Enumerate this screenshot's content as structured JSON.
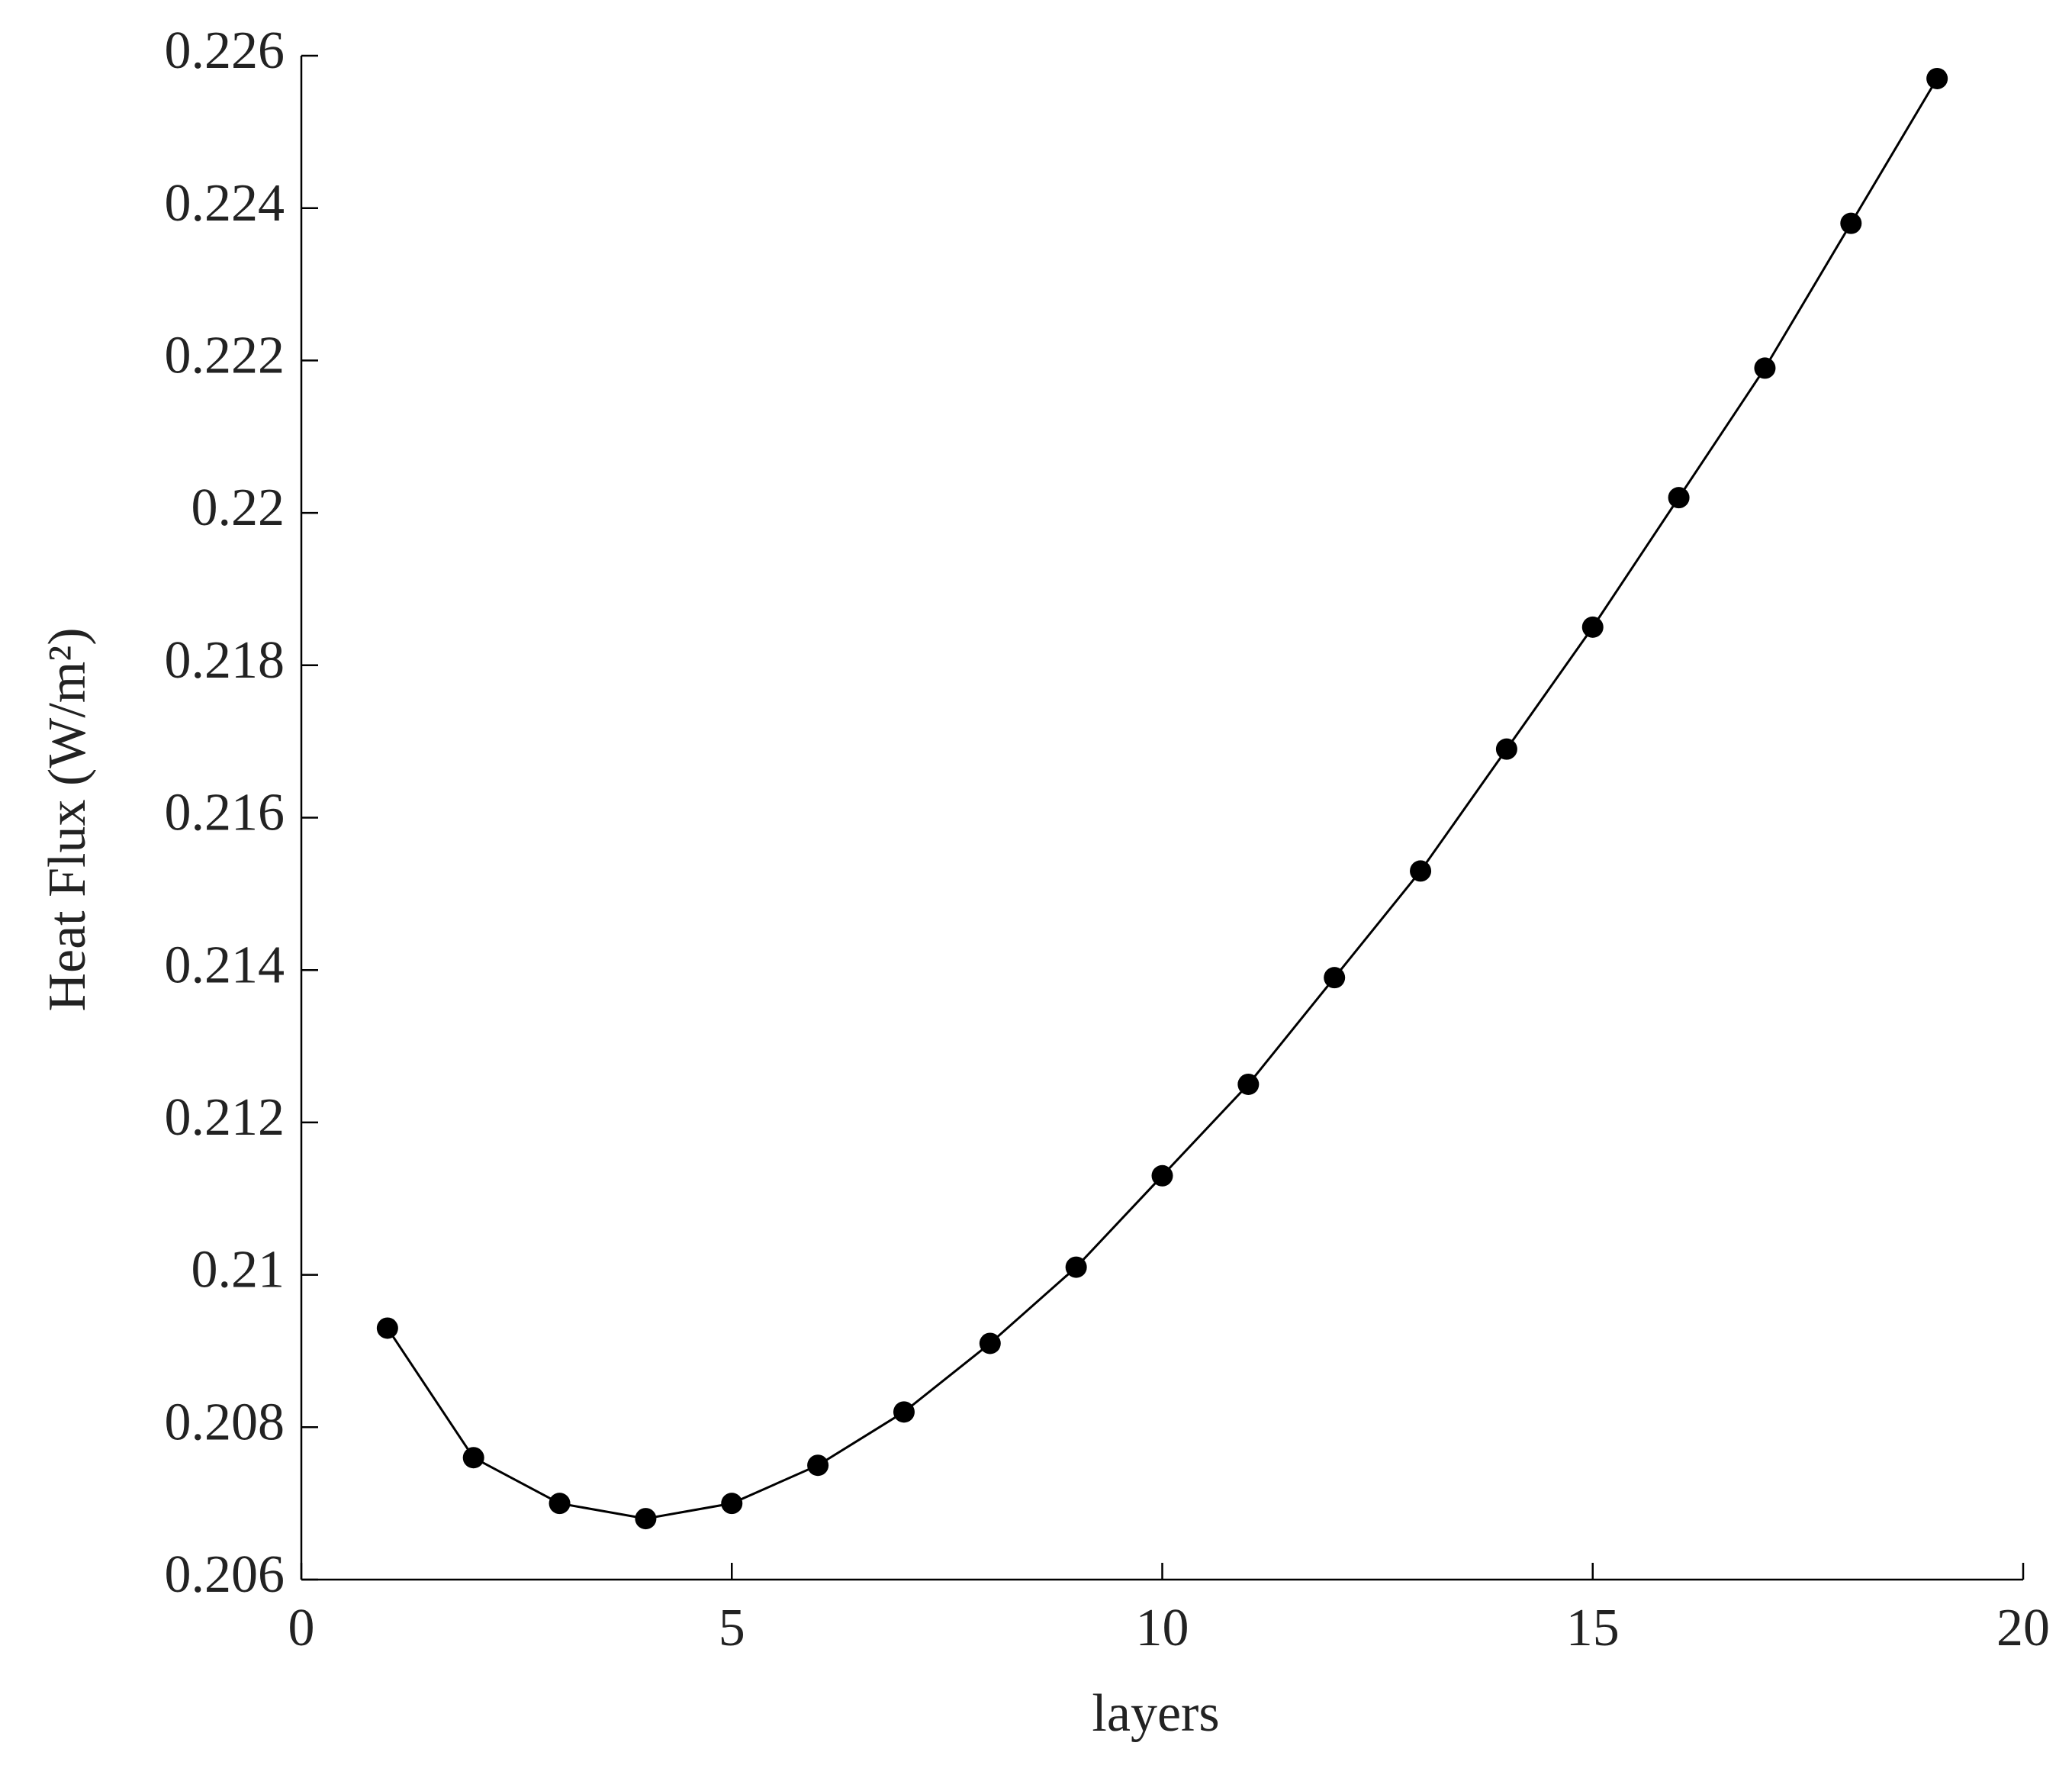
{
  "chart_data": {
    "type": "line",
    "x_label": "layers",
    "y_label": "Heat Flux (W/m²)",
    "x": [
      1,
      2,
      3,
      4,
      5,
      6,
      7,
      8,
      9,
      10,
      11,
      12,
      13,
      14,
      15,
      16,
      17,
      18,
      19
    ],
    "series": [
      {
        "color": "#000000",
        "values": [
          0.2093,
          0.2076,
          0.207,
          0.2068,
          0.207,
          0.2075,
          0.2082,
          0.2091,
          0.2101,
          0.2113,
          0.2125,
          0.2139,
          0.2153,
          0.2169,
          0.2185,
          0.2202,
          0.2219,
          0.2238,
          0.2257
        ]
      }
    ],
    "xlim": [
      0,
      20
    ],
    "xticks": [
      0,
      5,
      10,
      15,
      20
    ],
    "ylim": [
      0.206,
      0.226
    ],
    "yticks": [
      0.206,
      0.208,
      0.21,
      0.212,
      0.214,
      0.216,
      0.218,
      0.22,
      0.222,
      0.224,
      0.226
    ]
  }
}
